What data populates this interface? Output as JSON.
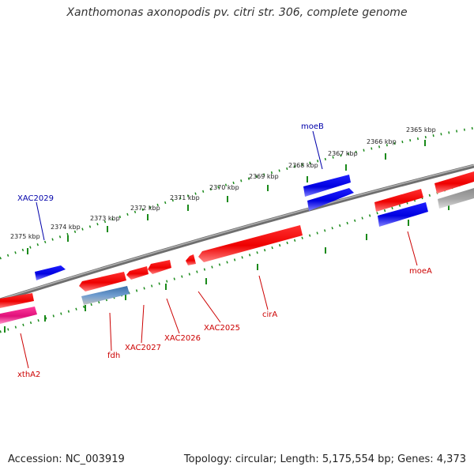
{
  "title": "Xanthomonas axonopodis pv. citri str. 306, complete genome",
  "footer": {
    "accession": "Accession: NC_003919",
    "summary": "Topology: circular; Length: 5,175,554 bp; Genes: 4,373"
  },
  "colors": {
    "forward_gene": "#ff0000",
    "reverse_gene": "#0000ff",
    "highlight_gene": "#ff1493",
    "other_gene_blue": "#4a86c8",
    "other_gene_gray": "#a0a0a0",
    "tick": "#1a8a1a",
    "backbone": "#808080",
    "forward_label": "#cc0000",
    "reverse_label": "#0000aa"
  },
  "scale_labels": [
    "2375 kbp",
    "2374 kbp",
    "2373 kbp",
    "2372 kbp",
    "2371 kbp",
    "2370 kbp",
    "2369 kbp",
    "2368 kbp",
    "2367 kbp",
    "2366 kbp",
    "2365 kbp"
  ],
  "genes": {
    "xac2029": "XAC2029",
    "moeB": "moeB",
    "xthA2": "xthA2",
    "fdh": "fdh",
    "xac2027": "XAC2027",
    "xac2026": "XAC2026",
    "xac2025": "XAC2025",
    "cirA": "cirA",
    "moeA": "moeA"
  }
}
